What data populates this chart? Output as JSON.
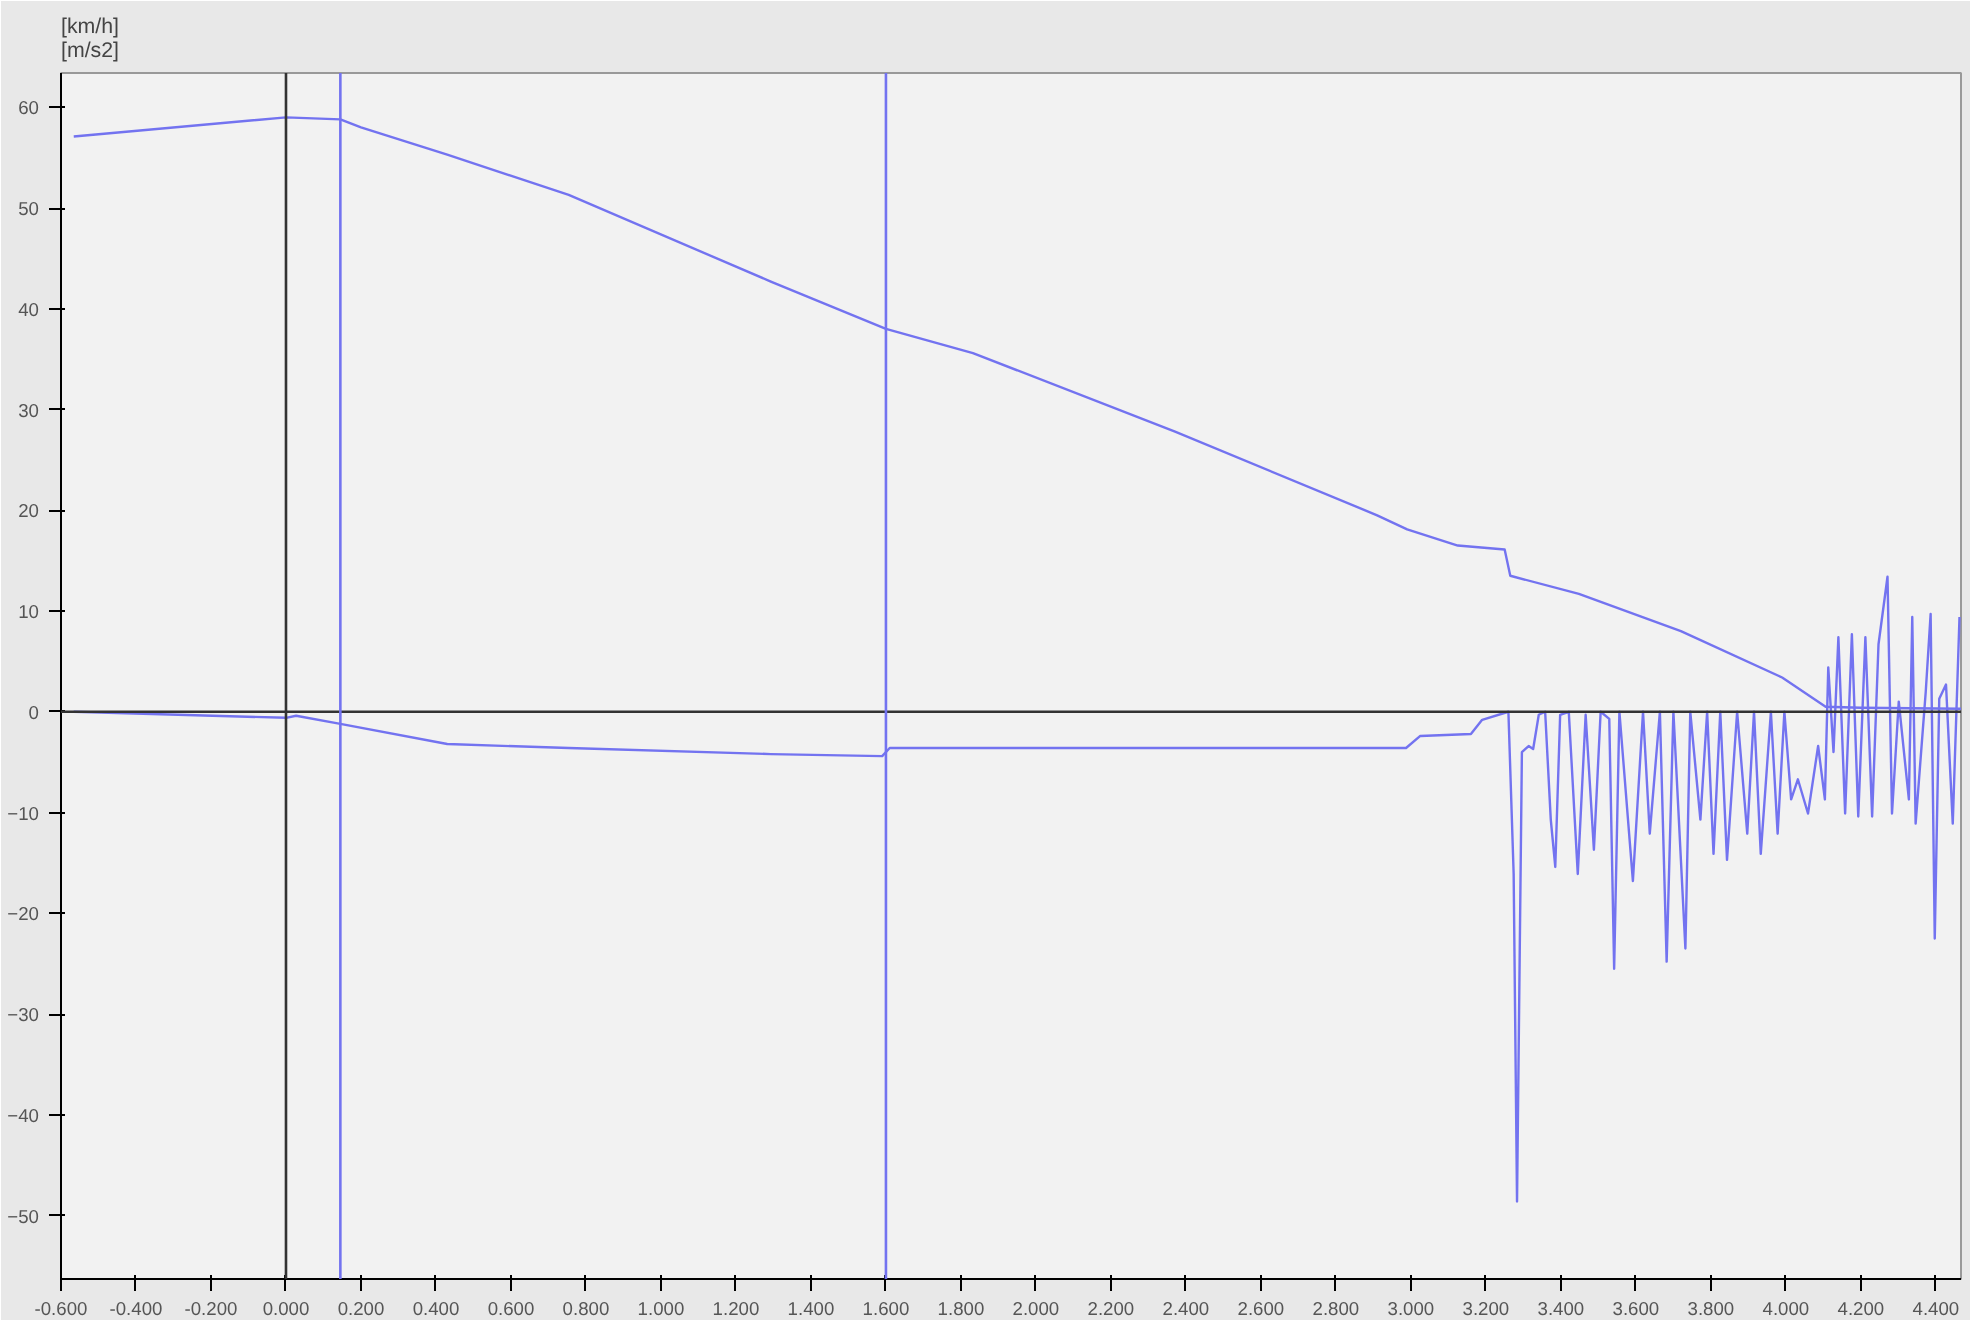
{
  "chart_data": {
    "type": "line",
    "title": "[km/h]\n[m/s2]",
    "xlim": [
      -0.6,
      4.467
    ],
    "ylim": [
      -56.3,
      63.4
    ],
    "xticks": [
      {
        "value": -0.6,
        "label": "-0.600"
      },
      {
        "value": -0.4,
        "label": "-0.400"
      },
      {
        "value": -0.2,
        "label": "-0.200"
      },
      {
        "value": 0,
        "label": "0.000"
      },
      {
        "value": 0.2,
        "label": "0.200"
      },
      {
        "value": 0.4,
        "label": "0.400"
      },
      {
        "value": 0.6,
        "label": "0.600"
      },
      {
        "value": 0.8,
        "label": "0.800"
      },
      {
        "value": 1.0,
        "label": "1.000"
      },
      {
        "value": 1.2,
        "label": "1.200"
      },
      {
        "value": 1.4,
        "label": "1.400"
      },
      {
        "value": 1.6,
        "label": "1.600"
      },
      {
        "value": 1.8,
        "label": "1.800"
      },
      {
        "value": 2.0,
        "label": "2.000"
      },
      {
        "value": 2.2,
        "label": "2.200"
      },
      {
        "value": 2.4,
        "label": "2.400"
      },
      {
        "value": 2.6,
        "label": "2.600"
      },
      {
        "value": 2.8,
        "label": "2.800"
      },
      {
        "value": 3.0,
        "label": "3.000"
      },
      {
        "value": 3.2,
        "label": "3.200"
      },
      {
        "value": 3.4,
        "label": "3.400"
      },
      {
        "value": 3.6,
        "label": "3.600"
      },
      {
        "value": 3.8,
        "label": "3.800"
      },
      {
        "value": 4.0,
        "label": "4.000"
      },
      {
        "value": 4.2,
        "label": "4.200"
      },
      {
        "value": 4.4,
        "label": "4.400"
      }
    ],
    "yticks": [
      -50,
      -40,
      -30,
      -20,
      -10,
      0,
      10,
      20,
      30,
      40,
      50,
      60
    ],
    "grid": false,
    "line_style": "solid",
    "marker": "none",
    "ref_lines": [
      {
        "axis": "y",
        "value": 0,
        "color": "#333333"
      },
      {
        "axis": "x",
        "value": 0,
        "color": "#333333"
      },
      {
        "axis": "x",
        "value": 0.145,
        "color": "#7373f0"
      },
      {
        "axis": "x",
        "value": 1.6,
        "color": "#7373f0"
      }
    ],
    "series": [
      {
        "color": "#7373f0",
        "x": [
          -0.566,
          0,
          0.145,
          0.2,
          0.43,
          0.754,
          1.293,
          1.6,
          1.832,
          2.371,
          2.91,
          2.99,
          3.125,
          3.25,
          3.265,
          3.448,
          3.72,
          3.99,
          4.106,
          4.2,
          4.467
        ],
        "values": [
          57.1,
          59.0,
          58.8,
          58.0,
          55.3,
          51.3,
          42.7,
          38.0,
          35.6,
          27.8,
          19.5,
          18.1,
          16.5,
          16.1,
          13.5,
          11.7,
          8.0,
          3.4,
          0.5,
          0.4,
          0.3
        ]
      },
      {
        "color": "#7373f0",
        "x": [
          -0.566,
          0,
          0.027,
          0.145,
          0.43,
          0.754,
          1.293,
          1.59,
          1.61,
          2.371,
          2.987,
          3.025,
          3.16,
          3.19,
          3.26,
          3.274,
          3.283,
          3.296,
          3.314,
          3.326,
          3.341,
          3.358,
          3.373,
          3.385,
          3.398,
          3.421,
          3.445,
          3.466,
          3.488,
          3.506,
          3.529,
          3.542,
          3.556,
          3.592,
          3.619,
          3.637,
          3.664,
          3.682,
          3.7,
          3.732,
          3.745,
          3.772,
          3.79,
          3.807,
          3.825,
          3.843,
          3.87,
          3.897,
          3.915,
          3.933,
          3.96,
          3.978,
          3.996,
          4.014,
          4.032,
          4.059,
          4.086,
          4.104,
          4.113,
          4.127,
          4.14,
          4.158,
          4.176,
          4.193,
          4.212,
          4.23,
          4.247,
          4.271,
          4.283,
          4.301,
          4.328,
          4.337,
          4.346,
          4.373,
          4.386,
          4.397,
          4.409,
          4.427,
          4.445,
          4.463
        ],
        "values": [
          0,
          -0.6,
          -0.4,
          -1.2,
          -3.2,
          -3.6,
          -4.2,
          -4.4,
          -3.6,
          -3.6,
          -3.6,
          -2.4,
          -2.2,
          -0.8,
          0,
          -16.1,
          -48.6,
          -4.0,
          -3.4,
          -3.7,
          -0.3,
          0,
          -10.7,
          -15.4,
          -0.3,
          0,
          -16.1,
          -0.3,
          -13.7,
          0,
          -0.7,
          -25.5,
          0,
          -16.8,
          0,
          -12.1,
          0,
          -24.8,
          0,
          -23.5,
          0,
          -10.7,
          0,
          -14.1,
          0,
          -14.7,
          0,
          -12.1,
          0,
          -14.1,
          0,
          -12.1,
          0,
          -8.7,
          -6.7,
          -10.1,
          -3.4,
          -8.7,
          4.4,
          -4.0,
          7.4,
          -10.1,
          7.7,
          -10.4,
          7.4,
          -10.4,
          6.7,
          13.4,
          -10.1,
          1.0,
          -8.7,
          9.4,
          -11.1,
          2.0,
          9.7,
          -22.5,
          1.3,
          2.7,
          -11.1,
          9.4
        ]
      }
    ]
  }
}
